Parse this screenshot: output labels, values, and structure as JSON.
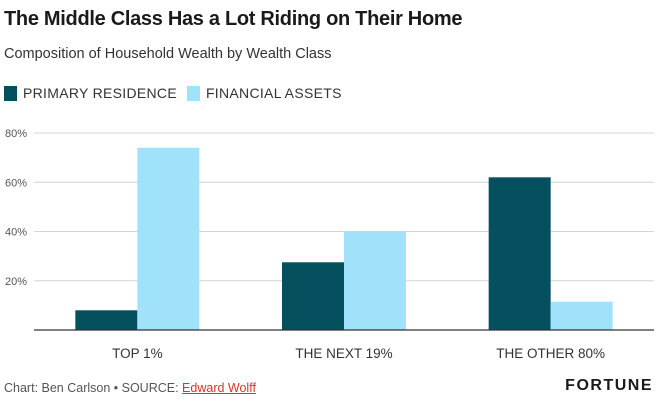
{
  "chart_data": {
    "type": "bar",
    "title": "The Middle Class Has a Lot Riding on Their Home",
    "subtitle": "Composition of Household Wealth by Wealth Class",
    "categories": [
      "TOP 1%",
      "THE NEXT 19%",
      "THE OTHER 80%"
    ],
    "series": [
      {
        "name": "PRIMARY RESIDENCE",
        "color": "#04505f",
        "values": [
          8,
          27.5,
          62
        ]
      },
      {
        "name": "FINANCIAL ASSETS",
        "color": "#a0e2f9",
        "values": [
          74,
          40,
          11.5
        ]
      }
    ],
    "ylim": [
      0,
      80
    ],
    "yticks": [
      {
        "value": 20,
        "label": "20%"
      },
      {
        "value": 40,
        "label": "40%"
      },
      {
        "value": 60,
        "label": "60%"
      },
      {
        "value": 80,
        "label": "80%"
      }
    ],
    "grid": true,
    "legend_position": "top-left"
  },
  "footer": {
    "credit": "Chart: Ben Carlson • SOURCE: ",
    "source_link": "Edward Wolff",
    "brand": "FORTUNE"
  }
}
